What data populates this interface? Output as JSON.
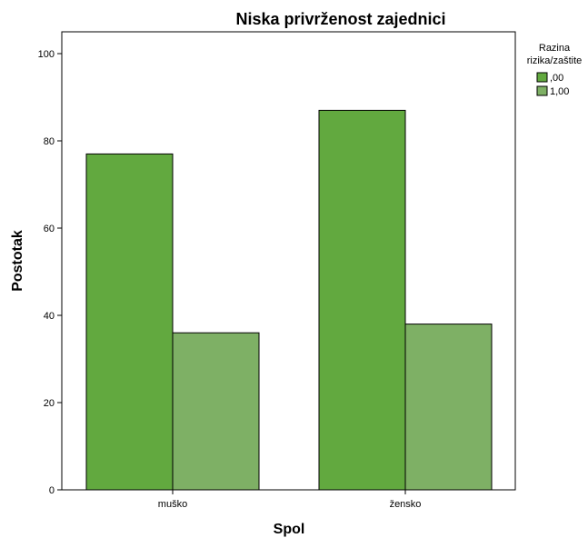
{
  "chart_data": {
    "type": "bar",
    "title": "Niska privrženost zajednici",
    "xlabel": "Spol",
    "ylabel": "Postotak",
    "categories": [
      "muško",
      "žensko"
    ],
    "series": [
      {
        "name": ",00",
        "values": [
          77,
          87
        ],
        "color": "#62a93f"
      },
      {
        "name": "1,00",
        "values": [
          36,
          38
        ],
        "color": "#7eb065"
      }
    ],
    "ylim": [
      0,
      105
    ],
    "yticks": [
      0,
      20,
      40,
      60,
      80,
      100
    ],
    "grid": false,
    "legend": {
      "title_lines": [
        "Razina",
        "rizika/zaštite"
      ],
      "position": "top-right"
    }
  }
}
